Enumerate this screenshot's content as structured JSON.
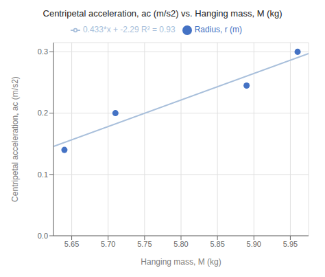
{
  "chart_data": {
    "type": "scatter",
    "title": "Centripetal acceleration, ac (m/s2) vs. Hanging mass, M (kg)",
    "xlabel": "Hanging mass, M (kg)",
    "ylabel": "Centripetal acceleration, ac (m/s2)",
    "series": [
      {
        "name": "Radius, r (m)",
        "type": "scatter",
        "color": "#4472c4",
        "marker": "circle",
        "x": [
          5.64,
          5.71,
          5.89,
          5.96
        ],
        "values": [
          0.14,
          0.2,
          0.245,
          0.3
        ]
      },
      {
        "name": "0.433*x + -2.29 R² = 0.93",
        "type": "line",
        "color": "#a8bfdb",
        "line_style": "solid",
        "x": [
          5.625,
          5.975
        ],
        "values": [
          0.145625,
          0.297175
        ]
      }
    ],
    "xlim": [
      5.625,
      5.975
    ],
    "ylim": [
      0.0,
      0.315
    ],
    "xticks": [
      5.65,
      {
        "value": 5.7,
        "label": "5.70"
      },
      5.75,
      {
        "value": 5.8,
        "label": "5.80"
      },
      5.85,
      {
        "value": 5.9,
        "label": "5.90"
      },
      5.95
    ],
    "yticks": [
      {
        "value": 0,
        "label": "0.0"
      },
      0.1,
      0.2,
      0.3
    ],
    "grid": true,
    "legend": "top"
  }
}
